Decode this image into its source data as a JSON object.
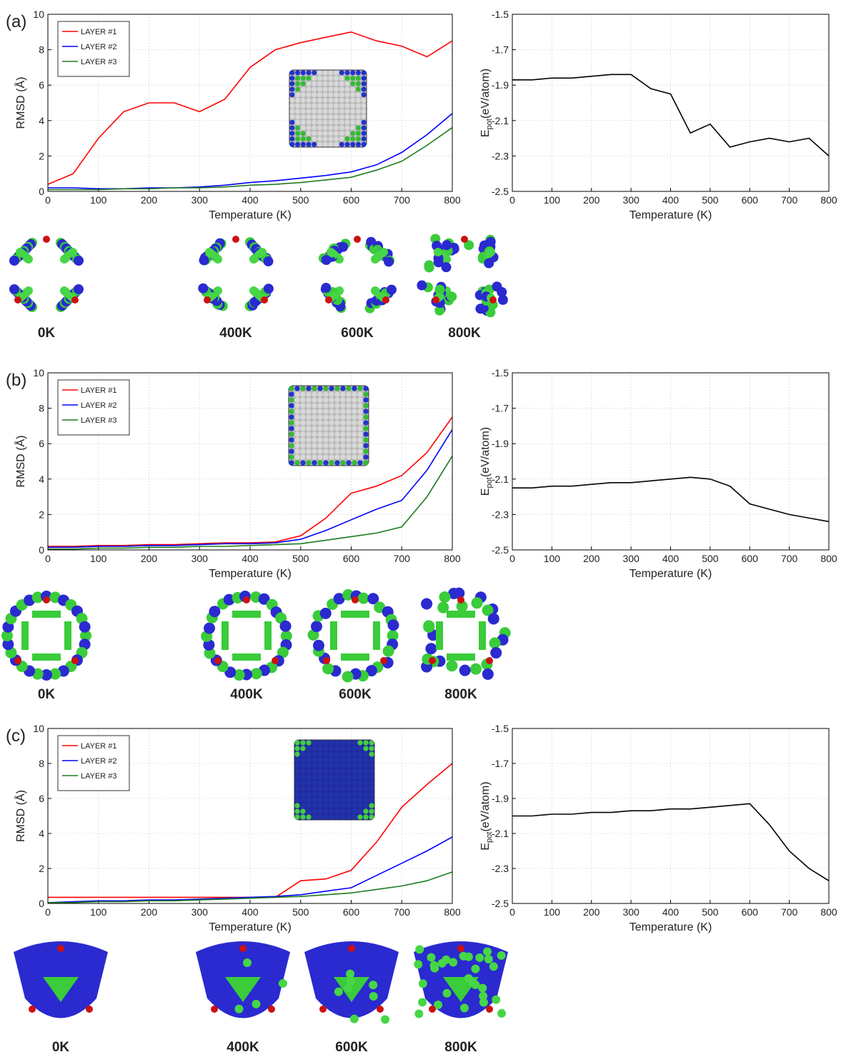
{
  "panels": [
    {
      "label": "(a)",
      "snapshots": [
        "0K",
        "400K",
        "600K",
        "800K"
      ]
    },
    {
      "label": "(b)",
      "snapshots": [
        "0K",
        "400K",
        "600K",
        "800K"
      ]
    },
    {
      "label": "(c)",
      "snapshots": [
        "0K",
        "400K",
        "600K",
        "800K"
      ]
    }
  ],
  "chart_data": [
    {
      "type": "line",
      "xlabel": "Temperature (K)",
      "ylabel": "RMSD (Å)",
      "grid": true,
      "legend": "upper left",
      "x": [
        0,
        50,
        100,
        150,
        200,
        250,
        300,
        350,
        400,
        450,
        500,
        550,
        600,
        650,
        700,
        750,
        800
      ],
      "xlim": [
        0,
        800
      ],
      "xticks": [
        0,
        100,
        200,
        300,
        400,
        500,
        600,
        700,
        800
      ],
      "ylim": [
        0,
        10
      ],
      "yticks": [
        0,
        2,
        4,
        6,
        8,
        10
      ],
      "series": [
        {
          "name": "LAYER #1",
          "color": "#ff0000",
          "values": [
            0.4,
            1.0,
            3.0,
            4.5,
            5.0,
            5.0,
            4.5,
            5.2,
            7.0,
            8.0,
            8.4,
            8.7,
            9.0,
            8.5,
            8.2,
            7.6,
            8.5
          ]
        },
        {
          "name": "LAYER #2",
          "color": "#0000ff",
          "values": [
            0.2,
            0.2,
            0.15,
            0.15,
            0.2,
            0.2,
            0.25,
            0.35,
            0.5,
            0.6,
            0.75,
            0.9,
            1.1,
            1.5,
            2.2,
            3.2,
            4.4
          ]
        },
        {
          "name": "LAYER #3",
          "color": "#1e7b1e",
          "values": [
            0.1,
            0.1,
            0.1,
            0.15,
            0.15,
            0.2,
            0.2,
            0.25,
            0.35,
            0.4,
            0.5,
            0.65,
            0.8,
            1.2,
            1.7,
            2.6,
            3.6
          ]
        }
      ]
    },
    {
      "type": "line",
      "xlabel": "Temperature (K)",
      "ylabel": [
        "E",
        "pot",
        "(eV/atom)"
      ],
      "grid": true,
      "x": [
        0,
        50,
        100,
        150,
        200,
        250,
        300,
        350,
        400,
        450,
        500,
        550,
        600,
        650,
        700,
        750,
        800
      ],
      "xlim": [
        0,
        800
      ],
      "xticks": [
        0,
        100,
        200,
        300,
        400,
        500,
        600,
        700,
        800
      ],
      "ylim": [
        -2.5,
        -1.5
      ],
      "yticks": [
        -2.5,
        -2.3,
        -2.1,
        -1.9,
        -1.7,
        -1.5
      ],
      "series": [
        {
          "color": "#000000",
          "values": [
            -1.87,
            -1.87,
            -1.86,
            -1.86,
            -1.85,
            -1.84,
            -1.84,
            -1.92,
            -1.95,
            -2.17,
            -2.12,
            -2.25,
            -2.22,
            -2.2,
            -2.22,
            -2.2,
            -2.3
          ]
        }
      ]
    },
    {
      "type": "line",
      "xlabel": "Temperature (K)",
      "ylabel": "RMSD (Å)",
      "grid": true,
      "legend": "upper left",
      "x": [
        0,
        50,
        100,
        150,
        200,
        250,
        300,
        350,
        400,
        450,
        500,
        550,
        600,
        650,
        700,
        750,
        800
      ],
      "xlim": [
        0,
        800
      ],
      "xticks": [
        0,
        100,
        200,
        300,
        400,
        500,
        600,
        700,
        800
      ],
      "ylim": [
        0,
        10
      ],
      "yticks": [
        0,
        2,
        4,
        6,
        8,
        10
      ],
      "series": [
        {
          "name": "LAYER #1",
          "color": "#ff0000",
          "values": [
            0.2,
            0.2,
            0.25,
            0.25,
            0.3,
            0.3,
            0.35,
            0.4,
            0.4,
            0.45,
            0.8,
            1.8,
            3.2,
            3.6,
            4.2,
            5.5,
            7.5
          ]
        },
        {
          "name": "LAYER #2",
          "color": "#0000ff",
          "values": [
            0.15,
            0.15,
            0.2,
            0.2,
            0.25,
            0.25,
            0.3,
            0.35,
            0.35,
            0.4,
            0.6,
            1.1,
            1.7,
            2.3,
            2.8,
            4.5,
            6.8
          ]
        },
        {
          "name": "LAYER #3",
          "color": "#1e7b1e",
          "values": [
            0.05,
            0.05,
            0.1,
            0.1,
            0.15,
            0.15,
            0.2,
            0.2,
            0.25,
            0.3,
            0.35,
            0.55,
            0.75,
            0.95,
            1.3,
            3.0,
            5.3
          ]
        }
      ]
    },
    {
      "type": "line",
      "xlabel": "Temperature (K)",
      "ylabel": [
        "E",
        "pot",
        "(eV/atom)"
      ],
      "grid": true,
      "x": [
        0,
        50,
        100,
        150,
        200,
        250,
        300,
        350,
        400,
        450,
        500,
        550,
        600,
        650,
        700,
        750,
        800
      ],
      "xlim": [
        0,
        800
      ],
      "xticks": [
        0,
        100,
        200,
        300,
        400,
        500,
        600,
        700,
        800
      ],
      "ylim": [
        -2.5,
        -1.5
      ],
      "yticks": [
        -2.5,
        -2.3,
        -2.1,
        -1.9,
        -1.7,
        -1.5
      ],
      "series": [
        {
          "color": "#000000",
          "values": [
            -2.15,
            -2.15,
            -2.14,
            -2.14,
            -2.13,
            -2.12,
            -2.12,
            -2.11,
            -2.1,
            -2.09,
            -2.1,
            -2.14,
            -2.24,
            -2.27,
            -2.3,
            -2.32,
            -2.34
          ]
        }
      ]
    },
    {
      "type": "line",
      "xlabel": "Temperature (K)",
      "ylabel": "RMSD (Å)",
      "grid": true,
      "legend": "upper left",
      "x": [
        0,
        50,
        100,
        150,
        200,
        250,
        300,
        350,
        400,
        450,
        500,
        550,
        600,
        650,
        700,
        750,
        800
      ],
      "xlim": [
        0,
        800
      ],
      "xticks": [
        0,
        100,
        200,
        300,
        400,
        500,
        600,
        700,
        800
      ],
      "ylim": [
        0,
        10
      ],
      "yticks": [
        0,
        2,
        4,
        6,
        8,
        10
      ],
      "series": [
        {
          "name": "LAYER #1",
          "color": "#ff0000",
          "values": [
            0.35,
            0.35,
            0.35,
            0.35,
            0.35,
            0.35,
            0.35,
            0.35,
            0.35,
            0.35,
            1.3,
            1.4,
            1.9,
            3.5,
            5.5,
            6.8,
            8.0
          ]
        },
        {
          "name": "LAYER #2",
          "color": "#0000ff",
          "values": [
            0.05,
            0.1,
            0.15,
            0.15,
            0.2,
            0.2,
            0.25,
            0.3,
            0.35,
            0.4,
            0.5,
            0.7,
            0.9,
            1.6,
            2.3,
            3.0,
            3.8
          ]
        },
        {
          "name": "LAYER #3",
          "color": "#1e7b1e",
          "values": [
            0.05,
            0.05,
            0.1,
            0.1,
            0.15,
            0.15,
            0.2,
            0.25,
            0.3,
            0.35,
            0.4,
            0.5,
            0.6,
            0.8,
            1.0,
            1.3,
            1.8
          ]
        }
      ]
    },
    {
      "type": "line",
      "xlabel": "Temperature (K)",
      "ylabel": [
        "E",
        "pot",
        "(eV/atom)"
      ],
      "grid": true,
      "x": [
        0,
        50,
        100,
        150,
        200,
        250,
        300,
        350,
        400,
        450,
        500,
        550,
        600,
        650,
        700,
        750,
        800
      ],
      "xlim": [
        0,
        800
      ],
      "xticks": [
        0,
        100,
        200,
        300,
        400,
        500,
        600,
        700,
        800
      ],
      "ylim": [
        -2.5,
        -1.5
      ],
      "yticks": [
        -2.5,
        -2.3,
        -2.1,
        -1.9,
        -1.7,
        -1.5
      ],
      "series": [
        {
          "color": "#000000",
          "values": [
            -2.0,
            -2.0,
            -1.99,
            -1.99,
            -1.98,
            -1.98,
            -1.97,
            -1.97,
            -1.96,
            -1.96,
            -1.95,
            -1.94,
            -1.93,
            -2.05,
            -2.2,
            -2.3,
            -2.37
          ]
        }
      ]
    }
  ]
}
